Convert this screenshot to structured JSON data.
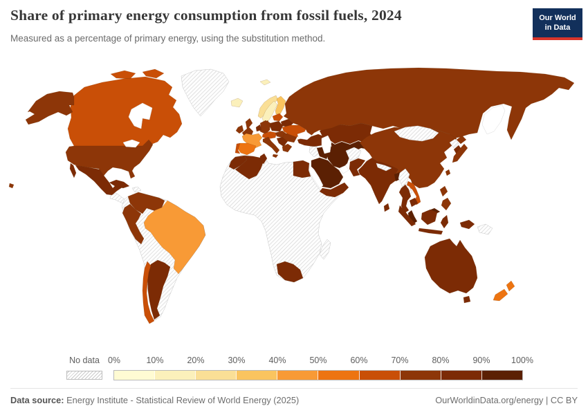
{
  "header": {
    "title": "Share of primary energy consumption from fossil fuels, 2024",
    "subtitle": "Measured as a percentage of primary energy, using the substitution method.",
    "logo_line1": "Our World",
    "logo_line2": "in Data",
    "logo_bg_color": "#12305B",
    "logo_accent_color": "#D8352B"
  },
  "legend": {
    "no_data_label": "No data",
    "tick_labels": [
      "0%",
      "10%",
      "20%",
      "30%",
      "40%",
      "50%",
      "60%",
      "70%",
      "80%",
      "90%",
      "100%"
    ],
    "bin_colors": [
      "#FFFBD3",
      "#FBF0BB",
      "#FADF96",
      "#FAC45F",
      "#F89A36",
      "#ED7411",
      "#C94F07",
      "#8D3608",
      "#7C2B05",
      "#5B2003"
    ]
  },
  "footer": {
    "source_label": "Data source:",
    "source_text": " Energy Institute - Statistical Review of World Energy (2025)",
    "credit": "OurWorldinData.org/energy | CC BY"
  },
  "chart_data": {
    "type": "choropleth_map",
    "title": "Share of primary energy consumption from fossil fuels, 2024",
    "unit": "% of primary energy (substitution method)",
    "year": 2024,
    "legend_bins": [
      "0-10%",
      "10-20%",
      "20-30%",
      "30-40%",
      "40-50%",
      "50-60%",
      "60-70%",
      "70-80%",
      "80-90%",
      "90-100%",
      "No data"
    ],
    "values": {
      "United States": "70-80%",
      "Canada": "60-70%",
      "Mexico": "80-90%",
      "Greenland": "No data",
      "Iceland": "10-20%",
      "Cuba": "80-90%",
      "Brazil": "40-50%",
      "Argentina": "80-90%",
      "Chile": "60-70%",
      "Colombia": "70-80%",
      "Venezuela": "70-80%",
      "Peru": "70-80%",
      "Ecuador": "70-80%",
      "Bolivia": "No data",
      "Paraguay": "No data",
      "Uruguay": "No data",
      "Norway": "20-30%",
      "Sweden": "10-20%",
      "Finland": "30-40%",
      "Denmark": "70-80%",
      "United Kingdom": "70-80%",
      "Ireland": "70-80%",
      "France": "40-50%",
      "Spain": "50-60%",
      "Portugal": "60-70%",
      "Germany": "70-80%",
      "Poland": "80-90%",
      "Italy": "70-80%",
      "Austria": "60-70%",
      "Greece": "70-80%",
      "Romania": "70-80%",
      "Belarus": "80-90%",
      "Ukraine": "60-70%",
      "Russia": "70-80%",
      "Turkey": "80-90%",
      "Kazakhstan": "80-90%",
      "Turkmenistan": "90-100%",
      "Uzbekistan": "90-100%",
      "Iran": "90-100%",
      "Iraq": "90-100%",
      "Saudi Arabia": "90-100%",
      "Oman": "80-90%",
      "Afghanistan": "No data",
      "Pakistan": "80-90%",
      "India": "80-90%",
      "Bangladesh": "90-100%",
      "Sri Lanka": "80-90%",
      "Myanmar": "No data",
      "Nepal": "No data",
      "China": "70-80%",
      "Mongolia": "No data",
      "Japan": "70-80%",
      "South Korea": "80-90%",
      "North Korea": "No data",
      "Vietnam": "60-70%",
      "Laos": "No data",
      "Thailand": "80-90%",
      "Cambodia": "80-90%",
      "Malaysia": "90-100%",
      "Indonesia": "80-90%",
      "Philippines": "70-80%",
      "Papua New Guinea": "No data",
      "Australia": "80-90%",
      "New Zealand": "50-60%",
      "Morocco": "80-90%",
      "Algeria": "80-90%",
      "Tunisia": "80-90%",
      "Libya": "No data",
      "Egypt": "80-90%",
      "South Africa": "80-90%",
      "Madagascar": "No data",
      "Sub-Saharan Africa (most)": "No data"
    }
  },
  "map": {
    "regions": {
      "alaska": 7,
      "canada": 6,
      "usa": 7,
      "mexico": 8,
      "greenland": "nd",
      "iceland": 1,
      "central_america": "nd",
      "cuba": 8,
      "hispaniola": "nd",
      "hawaii": 7,
      "south_america_other": "nd",
      "colombia_venezuela": 7,
      "peru_ecuador": 7,
      "brazil": 4,
      "argentina": 8,
      "chile": 6,
      "africa_other": "nd",
      "morocco": 8,
      "algeria": 8,
      "tunisia": 8,
      "egypt": 8,
      "south_africa": 8,
      "madagascar": "nd",
      "norway": 2,
      "sweden": 1,
      "finland": 3,
      "svalbard": 1,
      "denmark": 7,
      "uk": 7,
      "ireland": 7,
      "france": 4,
      "spain": 5,
      "portugal": 6,
      "germany": 7,
      "benelux": 8,
      "poland": 8,
      "czech_austria": 6,
      "italy": 7,
      "hungary_slovakia": 7,
      "balkans": 8,
      "greece": 7,
      "romania_bulgaria": 7,
      "baltics": 6,
      "belarus": 8,
      "ukraine": 6,
      "russia": 7,
      "caucasus": 8,
      "turkey": 8,
      "syria_levant": "nd",
      "iraq": 9,
      "iran": 9,
      "saudi_arabia": 9,
      "yemen_oman": 8,
      "kazakhstan": 8,
      "central_asia": 9,
      "china": 7,
      "afghanistan": "nd",
      "pakistan": 8,
      "india": 8,
      "nepal": "nd",
      "bangladesh": 9,
      "sri_lanka": 8,
      "myanmar": "nd",
      "mongolia": "nd",
      "taiwan": 7,
      "north_korea": "nd",
      "south_korea": 8,
      "japan": 7,
      "vietnam": 6,
      "laos": "nd",
      "thailand": 8,
      "cambodia": 8,
      "malaysia": 9,
      "indonesia": 8,
      "philippines": 7,
      "papua_new_guinea": "nd",
      "australia": 8,
      "tasmania": 8,
      "new_zealand": 5
    }
  }
}
